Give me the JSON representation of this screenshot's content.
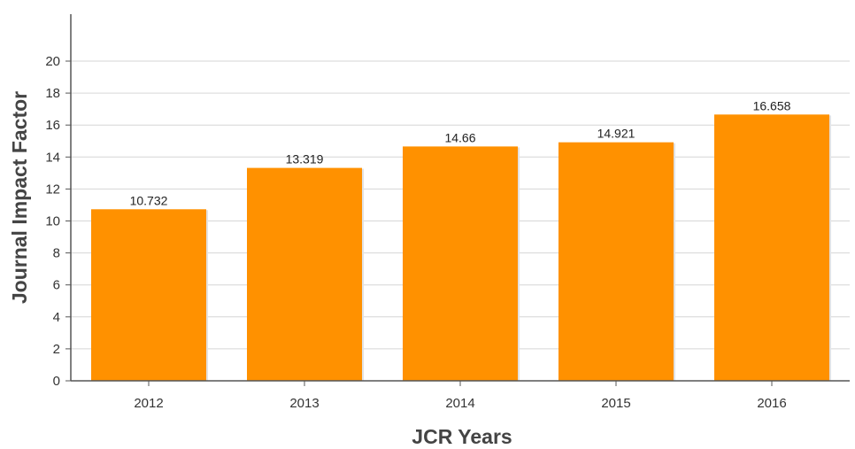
{
  "chart_data": {
    "type": "bar",
    "title": "",
    "xlabel": "JCR Years",
    "ylabel": "Journal Impact Factor",
    "categories": [
      "2012",
      "2013",
      "2014",
      "2015",
      "2016"
    ],
    "values": [
      10.732,
      13.319,
      14.66,
      14.921,
      16.658
    ],
    "value_labels": [
      "10.732",
      "13.319",
      "14.66",
      "14.921",
      "16.658"
    ],
    "ylim": [
      0,
      23
    ],
    "yticks": [
      0,
      2,
      4,
      6,
      8,
      10,
      12,
      14,
      16,
      18,
      20
    ],
    "ytick_labels": [
      "0",
      "2",
      "4",
      "6",
      "8",
      "10",
      "12",
      "14",
      "16",
      "18",
      "20"
    ],
    "grid": true,
    "legend": false,
    "colors": {
      "bar": "#ff9100",
      "grid": "#d6d6d6",
      "axis": "#555555"
    }
  }
}
